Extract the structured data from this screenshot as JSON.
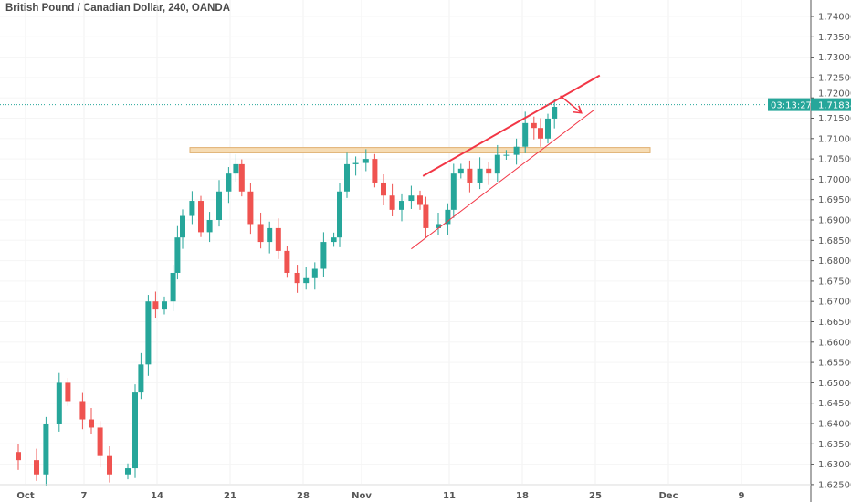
{
  "chart_data": {
    "type": "candlestick",
    "title": "British Pound / Canadian Dollar, 240, OANDA",
    "x_unit": "trading days since Oct 1",
    "xTicks": [
      {
        "t": 0,
        "label": "Oct"
      },
      {
        "t": 4,
        "label": "7"
      },
      {
        "t": 9,
        "label": "14"
      },
      {
        "t": 14,
        "label": "21"
      },
      {
        "t": 19,
        "label": "28"
      },
      {
        "t": 23,
        "label": "Nov"
      },
      {
        "t": 29,
        "label": "11"
      },
      {
        "t": 34,
        "label": "18"
      },
      {
        "t": 39,
        "label": "25"
      },
      {
        "t": 44,
        "label": "Dec"
      },
      {
        "t": 49,
        "label": "9"
      }
    ],
    "ylim": [
      1.625,
      1.74
    ],
    "yTicks": [
      "1.74000",
      "1.73500",
      "1.73000",
      "1.72500",
      "1.72000",
      "1.71500",
      "1.71000",
      "1.70500",
      "1.70000",
      "1.69500",
      "1.69000",
      "1.68500",
      "1.68000",
      "1.67500",
      "1.67000",
      "1.66500",
      "1.66000",
      "1.65500",
      "1.65000",
      "1.64500",
      "1.64000",
      "1.63500",
      "1.63000",
      "1.62500"
    ],
    "series": [
      [
        -1.75,
        1.633
      ],
      [
        -0.5,
        1.631
      ],
      [
        0.75,
        1.6275
      ],
      [
        1.4,
        1.64
      ],
      [
        2.3,
        1.65
      ],
      [
        2.9,
        1.6455
      ],
      [
        3.9,
        1.641
      ],
      [
        4.5,
        1.639
      ],
      [
        5.1,
        1.632
      ],
      [
        5.75,
        1.6275
      ],
      [
        7,
        1.629
      ],
      [
        7.5,
        1.6476
      ],
      [
        7.9,
        1.6545
      ],
      [
        8.4,
        1.67
      ],
      [
        8.9,
        1.668
      ],
      [
        9.5,
        1.67
      ],
      [
        10.1,
        1.677
      ],
      [
        10.4,
        1.6857
      ],
      [
        10.75,
        1.691
      ],
      [
        11.4,
        1.6947
      ],
      [
        12,
        1.687
      ],
      [
        12.6,
        1.69
      ],
      [
        13.25,
        1.697
      ],
      [
        13.9,
        1.7014
      ],
      [
        14.4,
        1.7037
      ],
      [
        14.8,
        1.697
      ],
      [
        15.4,
        1.689
      ],
      [
        16.1,
        1.6846
      ],
      [
        16.7,
        1.688
      ],
      [
        17.3,
        1.6824
      ],
      [
        17.9,
        1.677
      ],
      [
        18.6,
        1.6745
      ],
      [
        19.2,
        1.6757
      ],
      [
        19.8,
        1.678
      ],
      [
        20.4,
        1.6846
      ],
      [
        21.1,
        1.6857
      ],
      [
        21.5,
        1.697
      ],
      [
        22,
        1.7037
      ],
      [
        22.6,
        1.704
      ],
      [
        23.3,
        1.705
      ],
      [
        23.9,
        1.6992
      ],
      [
        24.5,
        1.696
      ],
      [
        25.1,
        1.6925
      ],
      [
        25.75,
        1.6947
      ],
      [
        26.4,
        1.696
      ],
      [
        27,
        1.6937
      ],
      [
        27.4,
        1.688
      ],
      [
        28.25,
        1.689
      ],
      [
        28.9,
        1.6925
      ],
      [
        29.3,
        1.7014
      ],
      [
        29.8,
        1.7026
      ],
      [
        30.4,
        1.6992
      ],
      [
        31.1,
        1.7026
      ],
      [
        31.7,
        1.7014
      ],
      [
        32.3,
        1.706
      ],
      [
        32.9,
        1.706
      ],
      [
        33.6,
        1.708
      ],
      [
        34.2,
        1.7138
      ],
      [
        34.8,
        1.7126
      ],
      [
        35.25,
        1.71
      ],
      [
        35.75,
        1.7149
      ],
      [
        36.2,
        1.7178
      ]
    ],
    "last_price": "1.71834",
    "countdown": "03:13:27",
    "colors": {
      "up": "#26a69a",
      "down": "#ef5350",
      "line": "#f23645",
      "zone": "#f6dcb4"
    },
    "drawings": {
      "resistance_zone": [
        1.7065,
        1.7078
      ],
      "upper_trendline": [
        [
          27.2,
          1.7008
        ],
        [
          39.3,
          1.7255
        ]
      ],
      "lower_trendline": [
        [
          26.4,
          1.6829
        ],
        [
          38.9,
          1.717
        ]
      ],
      "arrow": [
        [
          36.6,
          1.7205
        ],
        [
          38.05,
          1.7163
        ]
      ]
    }
  }
}
